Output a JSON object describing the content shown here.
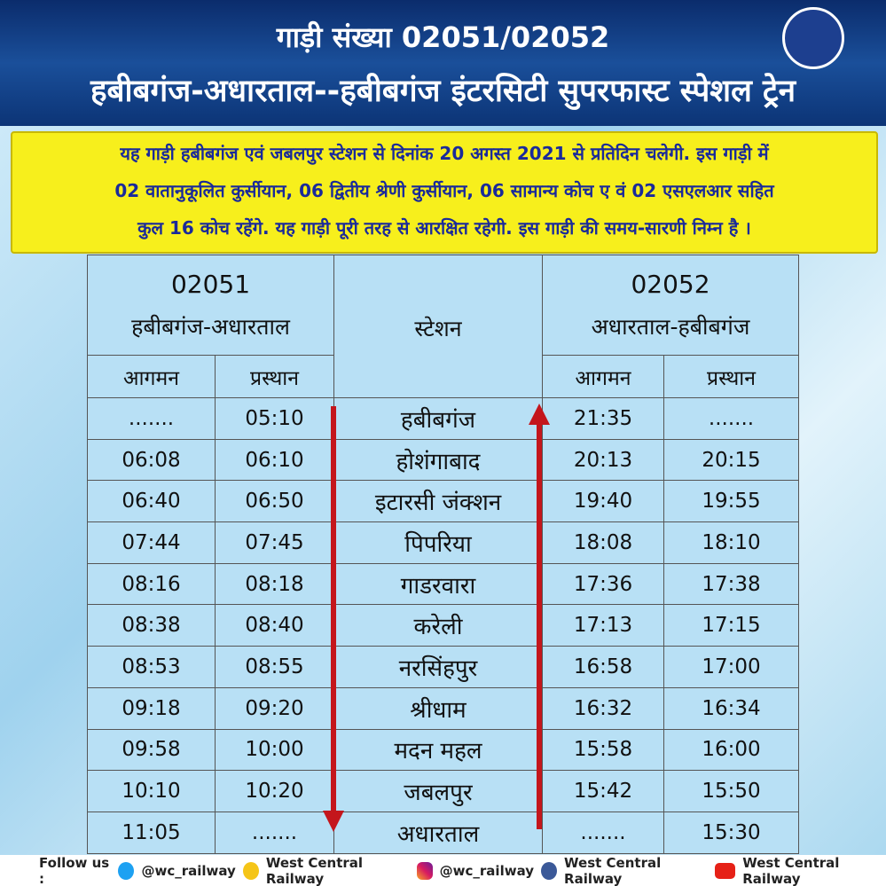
{
  "header": {
    "title": "गाड़ी संख्या 02051/02052",
    "subtitle": "हबीबगंज-अधारताल--हबीबगंज इंटरसिटी सुपरफास्ट स्पेशल ट्रेन"
  },
  "notice": {
    "lines": [
      "यह गाड़ी हबीबगंज एवं जबलपुर स्टेशन से दिनांक 20 अगस्त 2021 से प्रतिदिन चलेगी. इस गाड़ी में",
      "02 वातानुकूलित कुर्सीयान, 06 द्वितीय श्रेणी कुर्सीयान, 06 सामान्य कोच ए वं 02 एसएलआर सहित",
      "कुल 16 कोच रहेंगे. यह गाड़ी पूरी तरह से आरक्षित रहेगी. इस गाड़ी की समय-सारणी निम्न है ।"
    ]
  },
  "table": {
    "left": {
      "train": "02051",
      "route": "हबीबगंज-अधारताल",
      "columns": [
        "आगमन",
        "प्रस्थान"
      ]
    },
    "station_header": "स्टेशन",
    "right": {
      "train": "02052",
      "route": "अधारताल-हबीबगंज",
      "columns": [
        "आगमन",
        "प्रस्थान"
      ]
    },
    "rows": [
      [
        ".......",
        "05:10",
        "हबीबगंज",
        "21:35",
        "......."
      ],
      [
        "06:08",
        "06:10",
        "होशंगाबाद",
        "20:13",
        "20:15"
      ],
      [
        "06:40",
        "06:50",
        "इटारसी जंक्शन",
        "19:40",
        "19:55"
      ],
      [
        "07:44",
        "07:45",
        "पिपरिया",
        "18:08",
        "18:10"
      ],
      [
        "08:16",
        "08:18",
        "गाडरवारा",
        "17:36",
        "17:38"
      ],
      [
        "08:38",
        "08:40",
        "करेली",
        "17:13",
        "17:15"
      ],
      [
        "08:53",
        "08:55",
        "नरसिंहपुर",
        "16:58",
        "17:00"
      ],
      [
        "09:18",
        "09:20",
        "श्रीधाम",
        "16:32",
        "16:34"
      ],
      [
        "09:58",
        "10:00",
        "मदन महल",
        "15:58",
        "16:00"
      ],
      [
        "10:10",
        "10:20",
        "जबलपुर",
        "15:42",
        "15:50"
      ],
      [
        "11:05",
        ".......",
        "अधारताल",
        ".......",
        "15:30"
      ]
    ]
  },
  "footer": {
    "label": "Follow us :",
    "links": [
      "@wc_railway",
      "West Central Railway",
      "@wc_railway",
      "West Central Railway",
      "West Central Railway"
    ]
  }
}
